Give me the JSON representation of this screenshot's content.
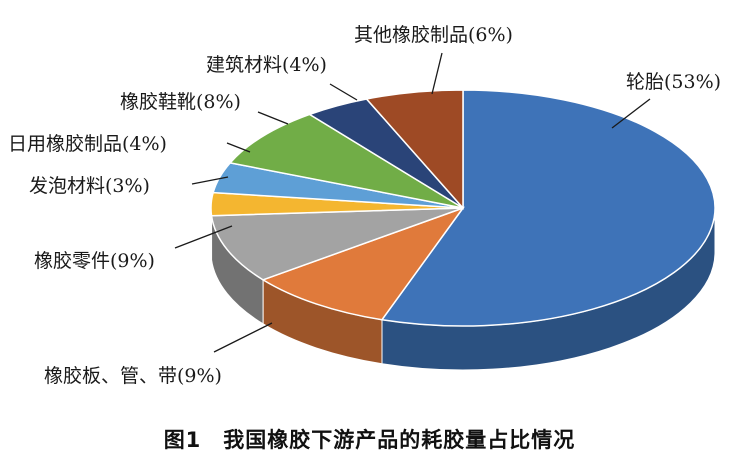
{
  "caption": "图1　我国橡胶下游产品的耗胶量占比情况",
  "chart_data": {
    "type": "pie",
    "title": "图1　我国橡胶下游产品的耗胶量占比情况",
    "categories": [
      "轮胎",
      "橡胶板、管、带",
      "橡胶零件",
      "发泡材料",
      "日用橡胶制品",
      "橡胶鞋靴",
      "建筑材料",
      "其他橡胶制品"
    ],
    "values": [
      53,
      9,
      9,
      3,
      4,
      8,
      4,
      6
    ],
    "unit": "%",
    "labels": [
      "轮胎(53%)",
      "橡胶板、管、带(9%)",
      "橡胶零件(9%)",
      "发泡材料(3%)",
      "日用橡胶制品(4%)",
      "橡胶鞋靴(8%)",
      "建筑材料(4%)",
      "其他橡胶制品(6%)"
    ],
    "colors": [
      "#3e73b8",
      "#e07a3b",
      "#a3a3a3",
      "#f4b630",
      "#5e9fd6",
      "#71ad47",
      "#2a4478",
      "#9e4a25"
    ],
    "legend": "none"
  }
}
